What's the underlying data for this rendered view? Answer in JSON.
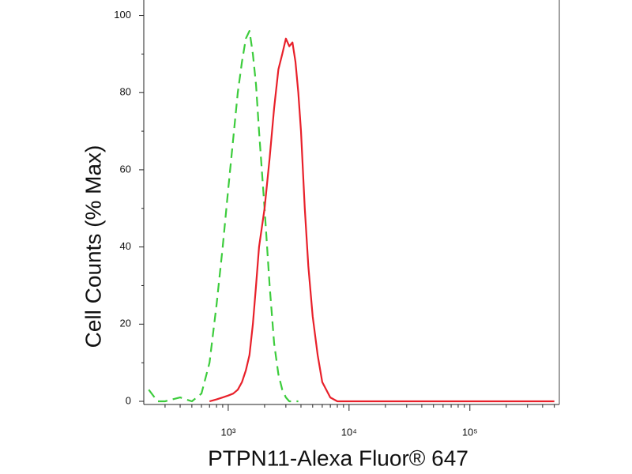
{
  "chart_data": {
    "type": "line",
    "x_label": "PTPN11-Alexa Fluor® 647",
    "y_label": "Cell Counts (% Max)",
    "x_scale": "log",
    "x": [
      220,
      260,
      300,
      400,
      500,
      600,
      700,
      800,
      900,
      1000,
      1100,
      1200,
      1300,
      1400,
      1500,
      1600,
      1700,
      1800,
      2000,
      2200,
      2400,
      2600,
      2800,
      3000,
      3200,
      3400,
      3600,
      3800,
      4000,
      4300,
      4600,
      5000,
      5500,
      6000,
      7000,
      8000,
      10000,
      20000,
      50000,
      100000,
      200000,
      500000
    ],
    "series": [
      {
        "color": "#3ccc3c",
        "dash": true,
        "values": [
          3,
          0,
          0,
          1,
          0,
          2,
          10,
          25,
          40,
          55,
          68,
          80,
          88,
          94,
          96,
          90,
          82,
          70,
          50,
          30,
          15,
          7,
          3,
          1,
          0,
          0,
          0,
          0,
          null,
          null,
          null,
          null,
          null,
          null,
          null,
          null,
          null,
          null,
          null,
          null,
          null,
          null
        ]
      },
      {
        "color": "#e8202a",
        "dash": false,
        "values": [
          null,
          null,
          null,
          null,
          null,
          null,
          0,
          0.5,
          1,
          1.5,
          2,
          3,
          5,
          8,
          12,
          20,
          30,
          40,
          50,
          63,
          76,
          86,
          90,
          94,
          92,
          93,
          88,
          80,
          70,
          50,
          35,
          22,
          12,
          5,
          1,
          0,
          0,
          0,
          0,
          0,
          0,
          0
        ]
      }
    ],
    "xlim": [
      200,
      550000
    ],
    "xticks": [
      {
        "value": 1000,
        "label": "10³"
      },
      {
        "value": 10000,
        "label": "10⁴"
      },
      {
        "value": 100000,
        "label": "10⁵"
      }
    ],
    "x_minor_ticks": [
      300,
      400,
      500,
      600,
      700,
      800,
      900,
      2000,
      3000,
      4000,
      5000,
      6000,
      7000,
      8000,
      9000,
      20000,
      30000,
      40000,
      50000,
      60000,
      70000,
      80000,
      90000,
      200000,
      300000,
      400000,
      500000
    ],
    "ylim": [
      0,
      104
    ],
    "yticks": [
      0,
      20,
      40,
      60,
      80,
      100
    ],
    "y_minor_ticks": [
      10,
      30,
      50,
      70,
      90
    ]
  }
}
